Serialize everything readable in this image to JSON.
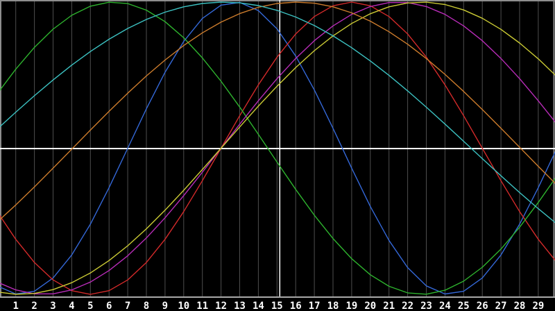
{
  "chart_data": {
    "type": "line",
    "title": "",
    "subtitle": "",
    "description": "Seven overlapping sine waves (biorhythm-style cycles) plotted over a ~30-day span on a black background; no legend or y-axis labels are shown.",
    "x_axis": {
      "tick_labels": [
        "1",
        "2",
        "3",
        "4",
        "5",
        "6",
        "7",
        "8",
        "9",
        "10",
        "11",
        "12",
        "13",
        "14",
        "15",
        "16",
        "17",
        "18",
        "19",
        "20",
        "21",
        "22",
        "23",
        "24",
        "25",
        "26",
        "27",
        "28",
        "29"
      ],
      "visible_day_min": 0.16,
      "visible_day_max": 29.9
    },
    "ylim": [
      -1,
      1
    ],
    "grid": true,
    "legend_position": "none",
    "zero_line": {
      "value": 0,
      "color": "#ffffff"
    },
    "today_marker": {
      "day": 15,
      "color": "#ffffff"
    },
    "series": [
      {
        "name": "blue-cycle",
        "color": "#3468d8",
        "amplitude": 1,
        "period_days": 23,
        "zero_crossing_up_day": 7.0,
        "peak_day": 12.75,
        "trough_day": 24.25
      },
      {
        "name": "red-cycle",
        "color": "#d42a2a",
        "amplitude": 1,
        "period_days": 28,
        "zero_crossing_up_day": 12.0,
        "peak_day": 19.0,
        "trough_day": 5.0
      },
      {
        "name": "green-cycle",
        "color": "#2eb42e",
        "amplitude": 1,
        "period_days": 33,
        "zero_crossing_up_day": -2.0,
        "peak_day": 6.25,
        "trough_day": 22.75
      },
      {
        "name": "magenta-cycle",
        "color": "#b82cb8",
        "amplitude": 1,
        "period_days": 38,
        "zero_crossing_up_day": 12.0,
        "peak_day": 21.5,
        "trough_day": 2.5
      },
      {
        "name": "yellow-cycle",
        "color": "#cbcb34",
        "amplitude": 1,
        "period_days": 43,
        "zero_crossing_up_day": 12.0,
        "peak_day": 22.75,
        "trough_day": 1.25
      },
      {
        "name": "orange-cycle",
        "color": "#cd7c2c",
        "amplitude": 1,
        "period_days": 48,
        "zero_crossing_up_day": 4.05,
        "peak_day": 16.05,
        "trough_day": 28.05
      },
      {
        "name": "cyan-cycle",
        "color": "#3cc2c2",
        "amplitude": 1,
        "period_days": 53,
        "zero_crossing_up_day": -1.1,
        "peak_day": 12.15,
        "trough_day": 25.4
      }
    ]
  },
  "colors": {
    "background": "#000000",
    "gridline": "#4e4e4e",
    "plot_border": "#8e8e8e",
    "axis_line": "#a8a8a8",
    "reference_line": "#ffffff",
    "label_text": "#ffffff"
  }
}
